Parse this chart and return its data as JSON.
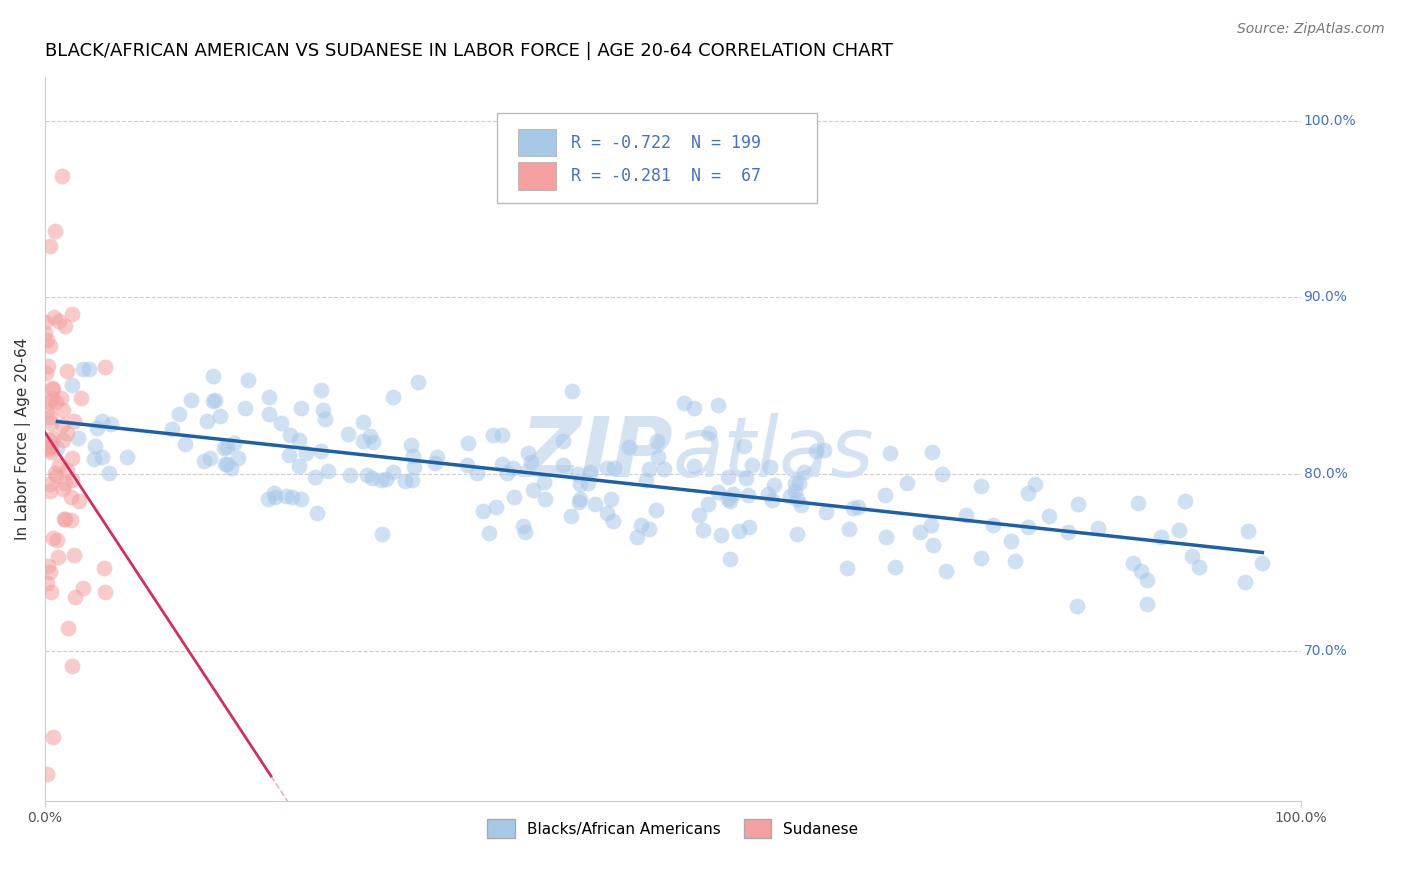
{
  "title": "BLACK/AFRICAN AMERICAN VS SUDANESE IN LABOR FORCE | AGE 20-64 CORRELATION CHART",
  "source": "Source: ZipAtlas.com",
  "ylabel": "In Labor Force | Age 20-64",
  "xlim": [
    0.0,
    1.0
  ],
  "ylim": [
    0.615,
    1.025
  ],
  "yticks": [
    0.7,
    0.8,
    0.9,
    1.0
  ],
  "ytick_labels": [
    "70.0%",
    "80.0%",
    "90.0%",
    "100.0%"
  ],
  "xticks": [
    0.0,
    1.0
  ],
  "xtick_labels": [
    "0.0%",
    "100.0%"
  ],
  "legend_labels": [
    "Blacks/African Americans",
    "Sudanese"
  ],
  "legend_r": [
    -0.722,
    -0.281
  ],
  "legend_n": [
    199,
    67
  ],
  "blue_color": "#a8c8e8",
  "pink_color": "#f4a0a0",
  "blue_line_color": "#2060a0",
  "pink_line_color": "#d03060",
  "pink_dash_color": "#f0b0c0",
  "watermark_color": "#d0dff0",
  "background_color": "#ffffff",
  "grid_color": "#cccccc",
  "blue_seed": 42,
  "pink_seed": 123,
  "title_fontsize": 13,
  "source_fontsize": 10,
  "axis_label_fontsize": 11,
  "tick_fontsize": 10,
  "legend_fontsize": 11
}
